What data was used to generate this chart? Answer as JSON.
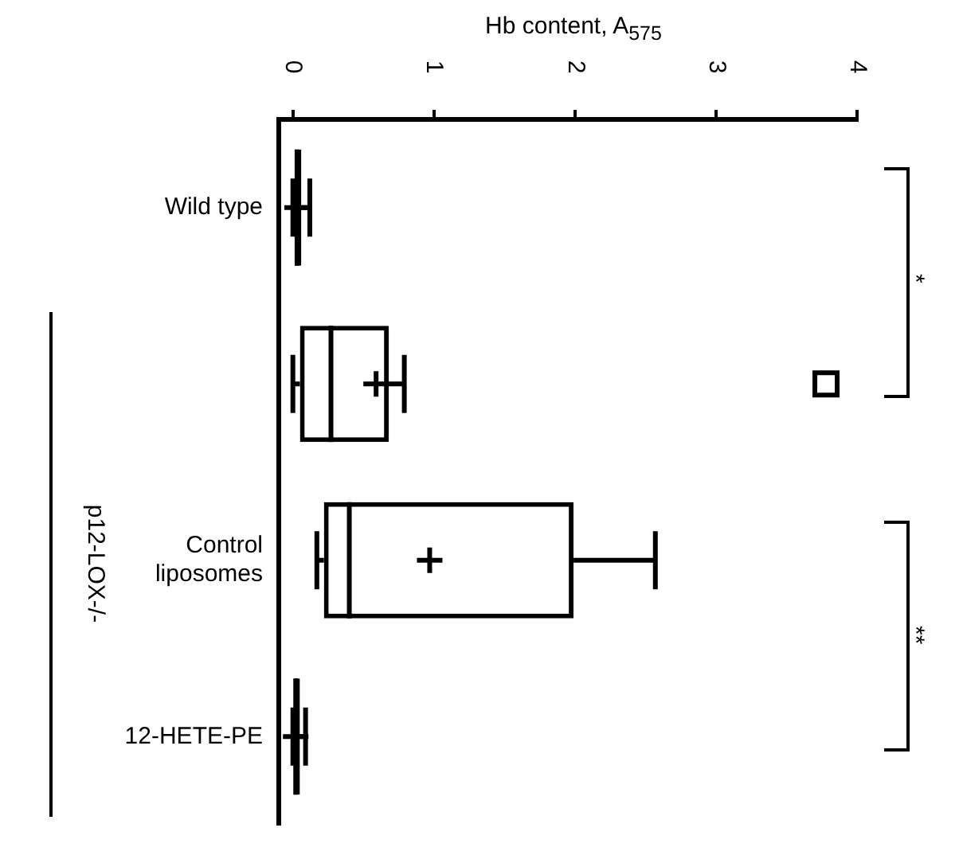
{
  "chart_data": {
    "type": "box",
    "orientation": "horizontal",
    "xlabel": "Hb content, A$_{575}$",
    "color": "#000000",
    "categories": [
      "Wild type",
      null,
      "Control liposomes",
      "12-HETE-PE"
    ],
    "boxes": [
      {
        "low": 0,
        "q1": 0,
        "median": 0.03,
        "q3": 0.06,
        "high": 0.12,
        "mean": 0.03
      },
      {
        "low": 0,
        "q1": 0.05,
        "median": 0.27,
        "q3": 0.68,
        "high": 0.79,
        "mean": 0.59,
        "outliers": [
          3.78
        ]
      },
      {
        "low": 0.17,
        "q1": 0.22,
        "median": 0.4,
        "q3": 1.99,
        "high": 2.57,
        "mean": 0.97
      },
      {
        "low": 0,
        "q1": 0,
        "median": 0.02,
        "q3": 0.05,
        "high": 0.09,
        "mean": 0.02
      }
    ],
    "xlim": [
      -0.1,
      4
    ],
    "xticks": [
      0,
      1,
      2,
      3,
      4
    ],
    "grid": false,
    "legend": false,
    "annotations": [
      "*",
      "**",
      "p12-LOX-/-"
    ]
  }
}
